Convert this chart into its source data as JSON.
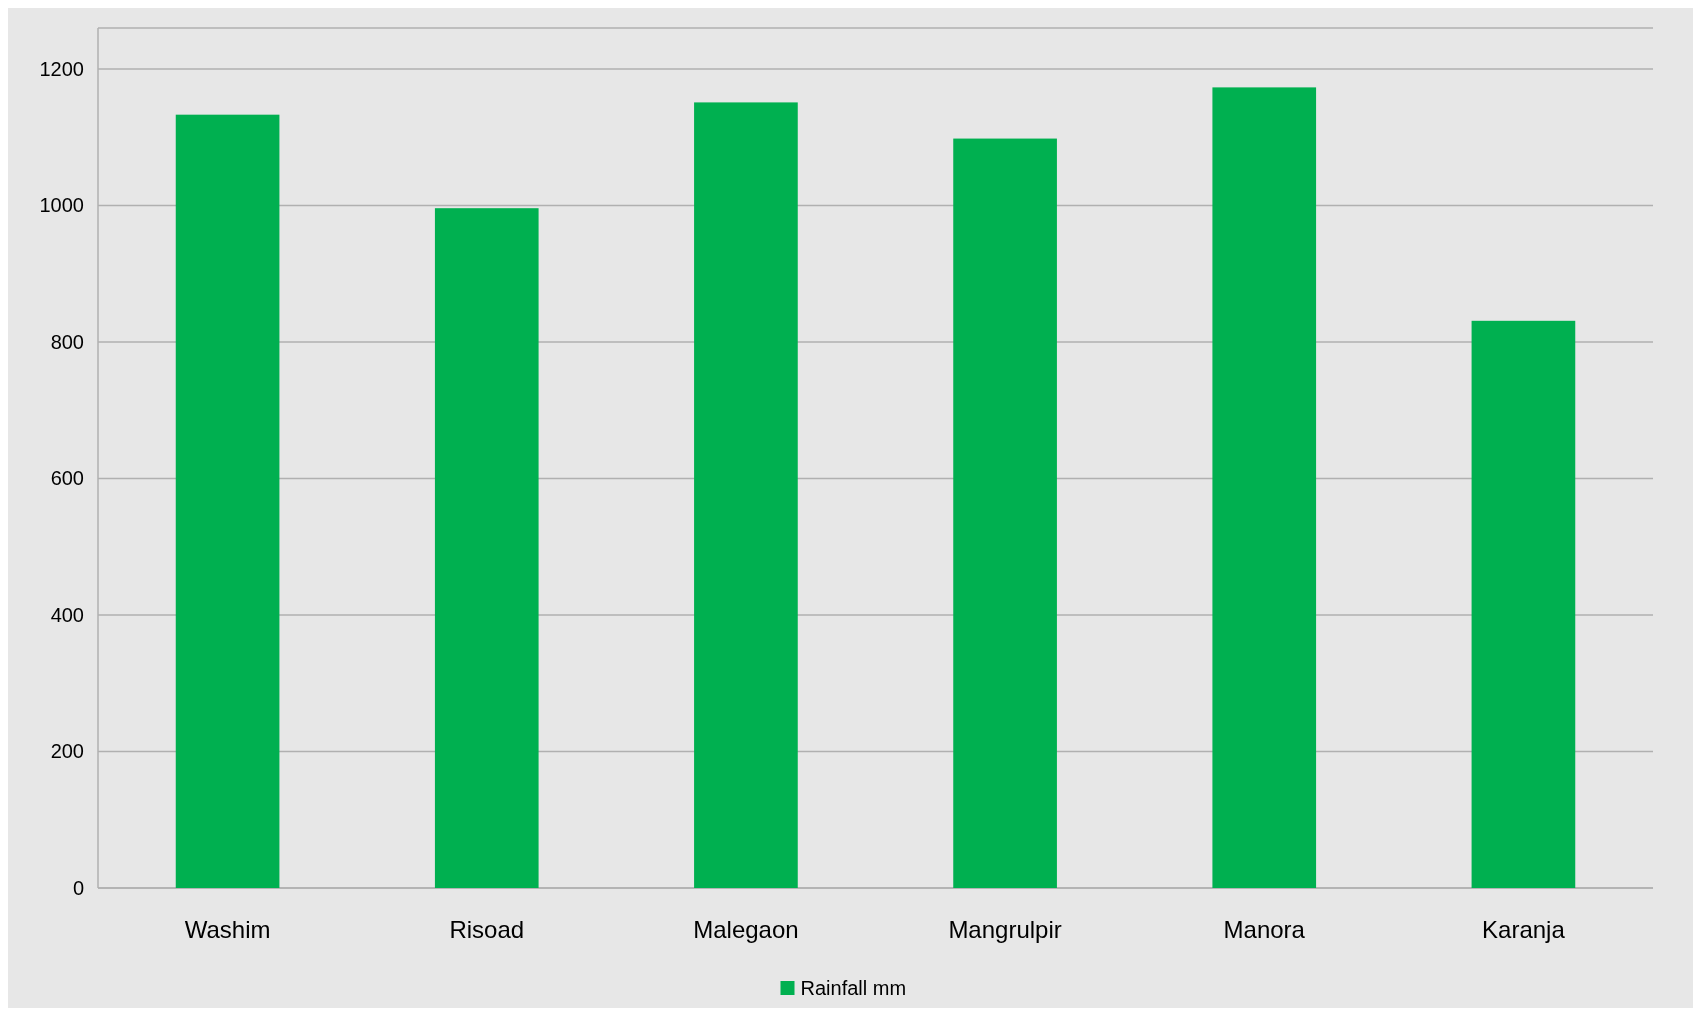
{
  "chart_data": {
    "type": "bar",
    "categories": [
      "Washim",
      "Risoad",
      "Malegaon",
      "Mangrulpir",
      "Manora",
      "Karanja"
    ],
    "series": [
      {
        "name": "Rainfall mm",
        "color": "#00b050",
        "values": [
          1133,
          996,
          1151,
          1098,
          1173,
          831
        ]
      }
    ],
    "ylim": [
      0,
      1260
    ],
    "yticks": [
      0,
      200,
      400,
      600,
      800,
      1000,
      1200
    ],
    "grid": "y",
    "legend": "bottom"
  }
}
